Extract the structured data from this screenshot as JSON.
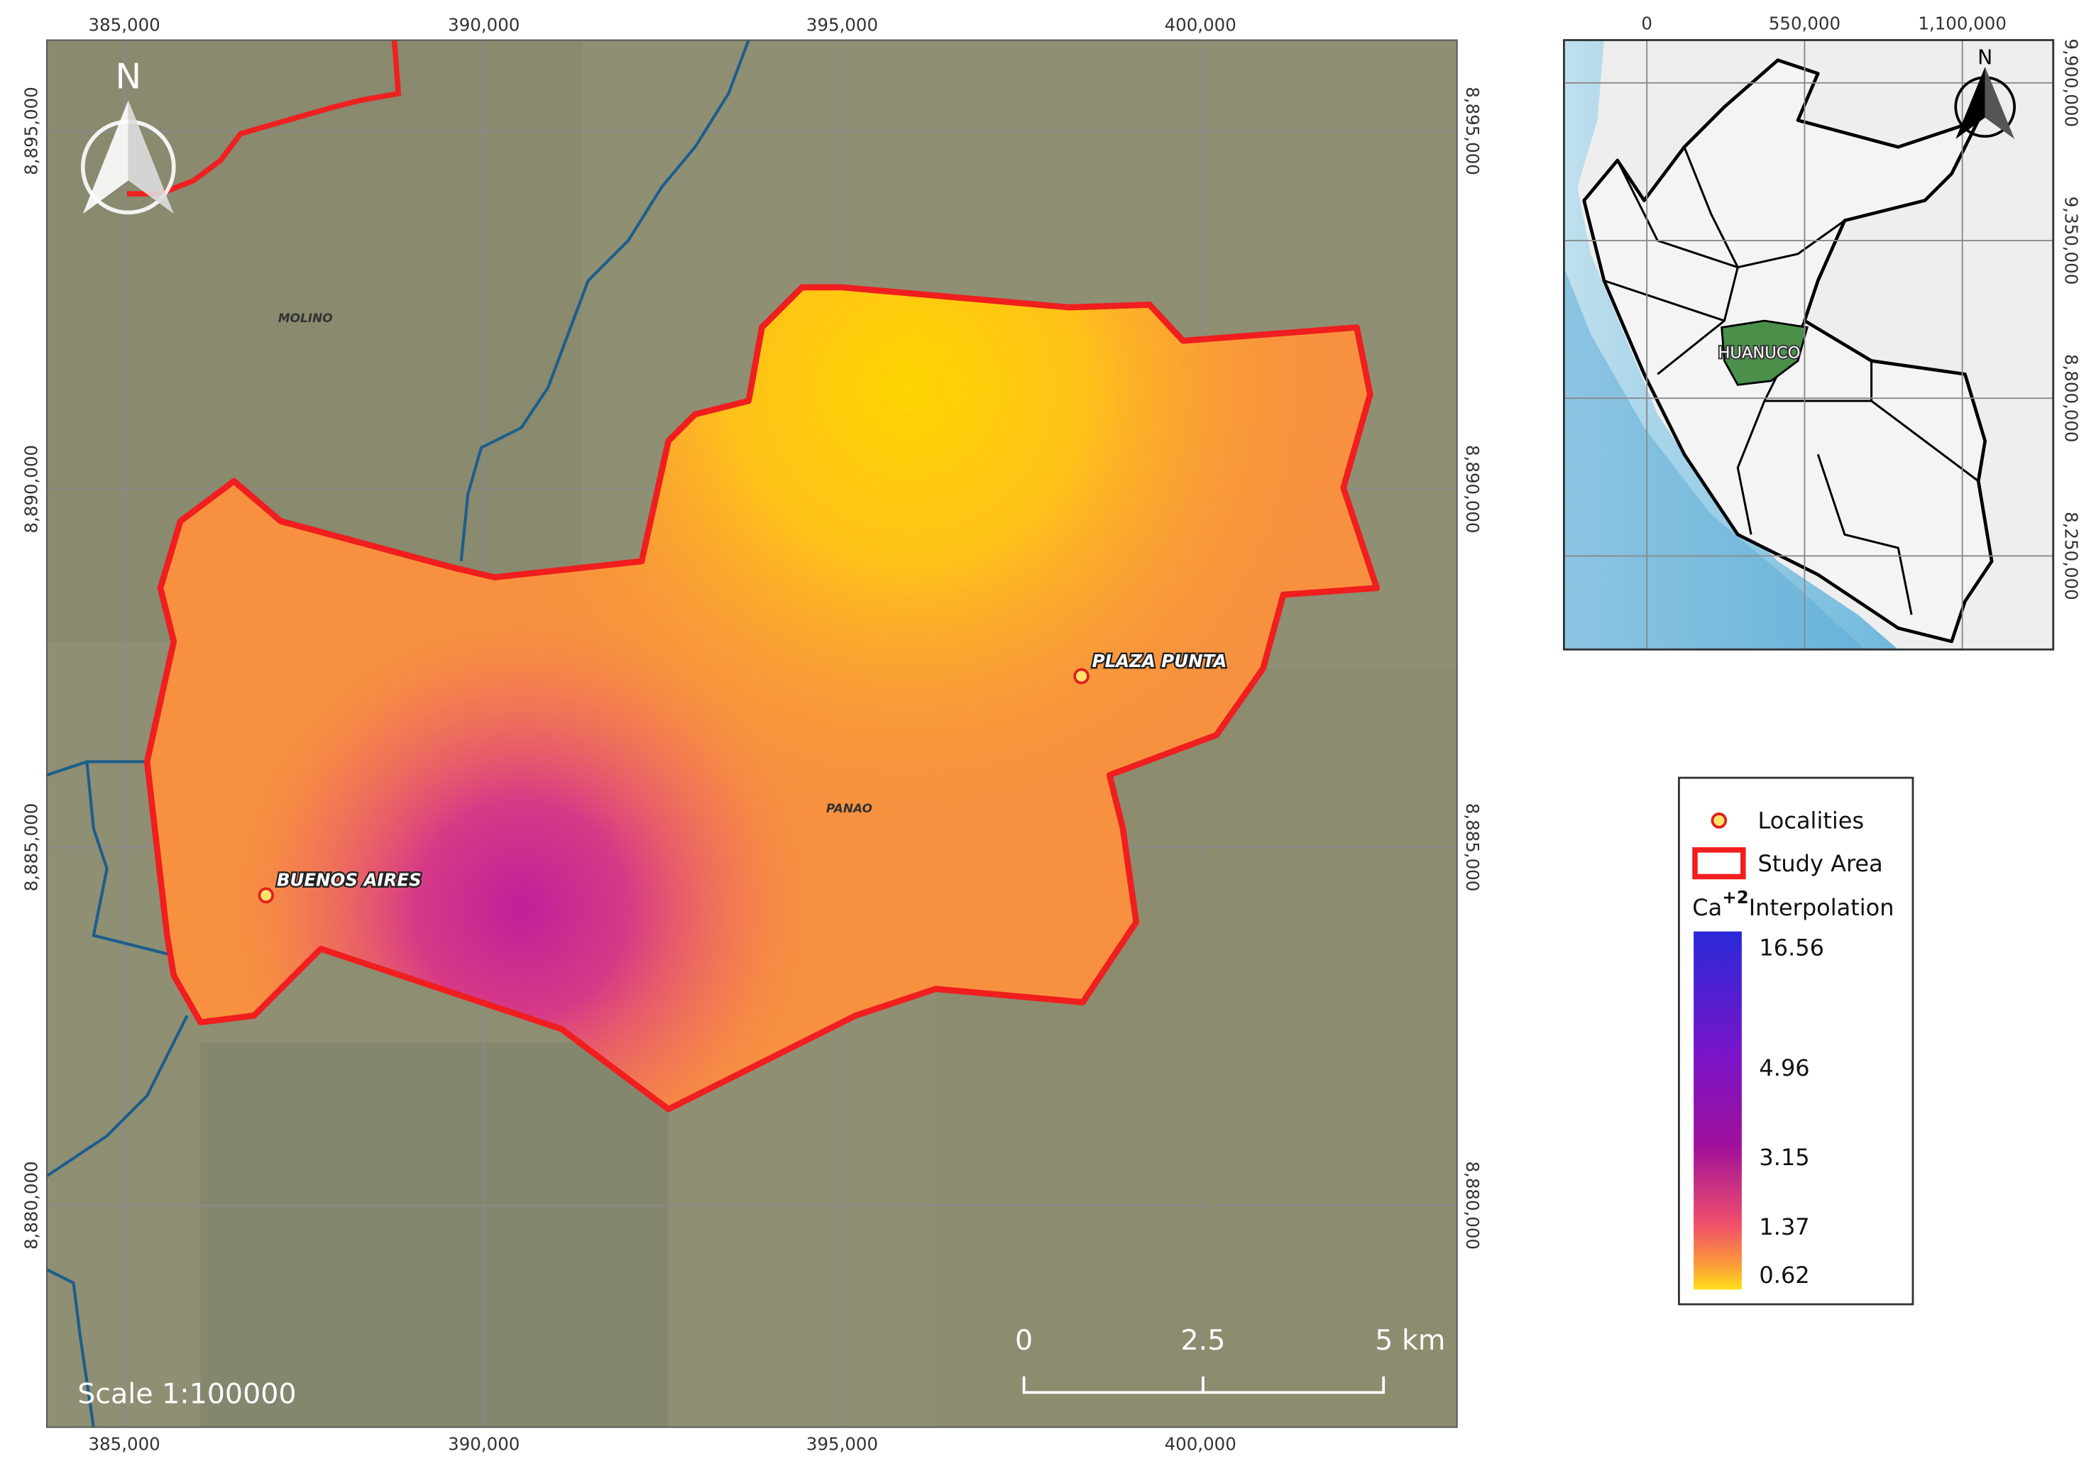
{
  "main_map": {
    "x_ticks": [
      "385,000",
      "390,000",
      "395,000",
      "400,000"
    ],
    "y_ticks": [
      "8,895,000",
      "8,890,000",
      "8,885,000",
      "8,880,000"
    ],
    "places": [
      "MOLINO",
      "PANAO"
    ],
    "localities": [
      "PLAZA PUNTA",
      "BUENOS AIRES"
    ],
    "north": "N",
    "scale_text": "Scale 1:100000",
    "scale_bar": [
      "0",
      "2.5",
      "5 km"
    ]
  },
  "inset_map": {
    "x_ticks": [
      "0",
      "550,000",
      "1,100,000"
    ],
    "y_ticks": [
      "9,900,000",
      "9,350,000",
      "8,800,000",
      "8,250,000"
    ],
    "region": "HUANUCO",
    "north": "N"
  },
  "legend": {
    "items": [
      "Localities",
      "Study Area"
    ],
    "title_base": "Ca",
    "title_sup": "+2",
    "title_rest": "Interpolation",
    "values": [
      "16.56",
      "4.96",
      "3.15",
      "1.37",
      "0.62"
    ]
  }
}
